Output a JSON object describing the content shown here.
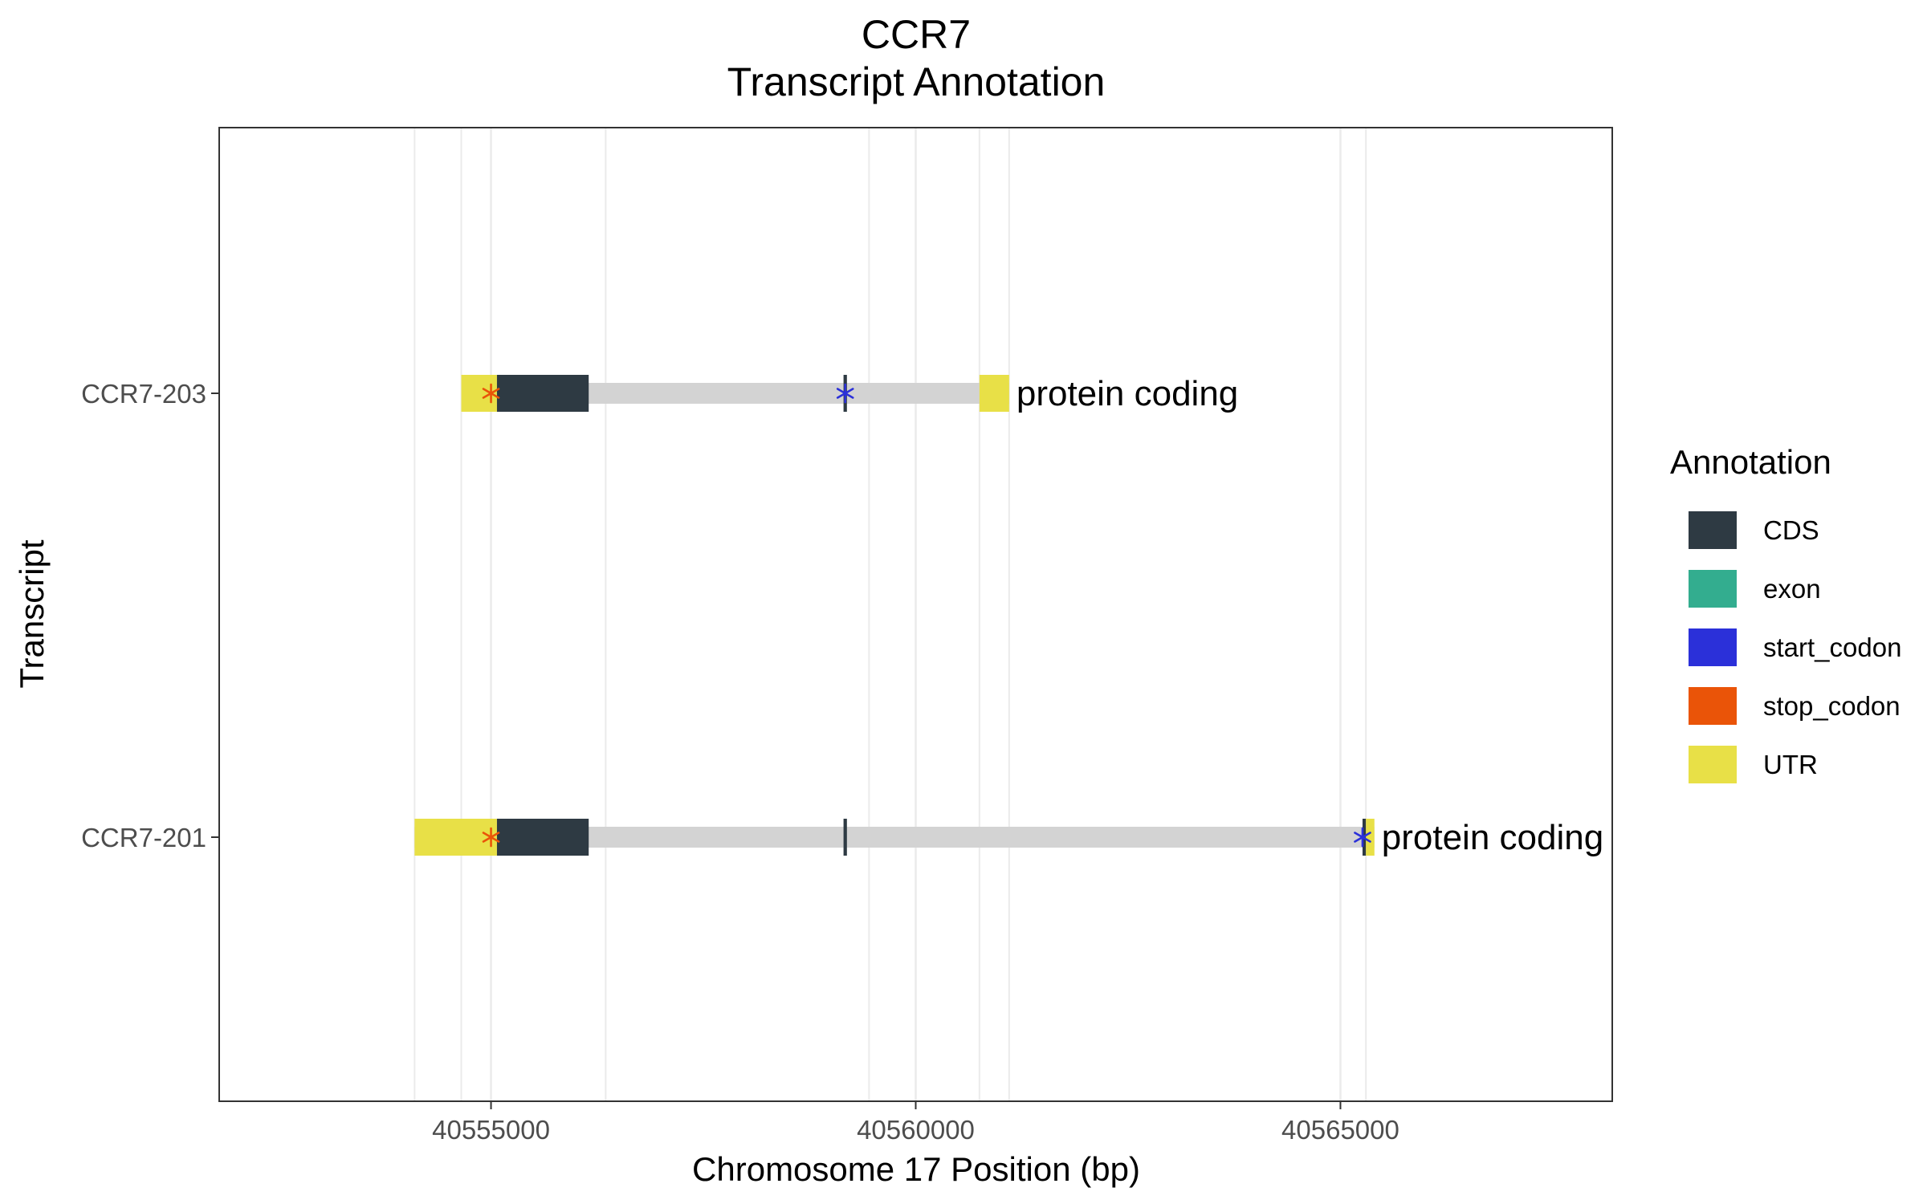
{
  "chart_data": {
    "type": "gene-transcript-track",
    "title": "CCR7",
    "subtitle": "Transcript Annotation",
    "xlabel": "Chromosome 17 Position (bp)",
    "ylabel": "Transcript",
    "xlim": [
      40551800,
      40568200
    ],
    "x_ticks": [
      40555000,
      40560000,
      40565000
    ],
    "x_tick_labels": [
      "40555000",
      "40560000",
      "40565000"
    ],
    "minor_gridlines_x": [
      40554100,
      40554650,
      40556350,
      40559450,
      40560750,
      40561100,
      40565300
    ],
    "grid": true,
    "legend": {
      "title": "Annotation",
      "position": "right",
      "items": [
        {
          "label": "CDS",
          "color": "#2e3a43"
        },
        {
          "label": "exon",
          "color": "#33ad8f"
        },
        {
          "label": "start_codon",
          "color": "#2b30d9"
        },
        {
          "label": "stop_codon",
          "color": "#ea5408"
        },
        {
          "label": "UTR",
          "color": "#e8e047"
        }
      ]
    },
    "intron_color": "#d3d3d3",
    "transcripts": [
      {
        "name": "CCR7-203",
        "biotype": "protein coding",
        "start": 40554650,
        "end": 40561100,
        "features": [
          {
            "type": "UTR",
            "start": 40554650,
            "end": 40555070
          },
          {
            "type": "CDS",
            "start": 40555070,
            "end": 40556150
          },
          {
            "type": "CDS",
            "start": 40559150,
            "end": 40559190
          },
          {
            "type": "UTR",
            "start": 40560750,
            "end": 40561100
          }
        ],
        "codons": [
          {
            "type": "stop_codon",
            "position": 40555000
          },
          {
            "type": "start_codon",
            "position": 40559170
          }
        ]
      },
      {
        "name": "CCR7-201",
        "biotype": "protein coding",
        "start": 40554100,
        "end": 40565400,
        "features": [
          {
            "type": "UTR",
            "start": 40554100,
            "end": 40555070
          },
          {
            "type": "CDS",
            "start": 40555070,
            "end": 40556150
          },
          {
            "type": "CDS",
            "start": 40559150,
            "end": 40559190
          },
          {
            "type": "CDS",
            "start": 40565260,
            "end": 40565300
          },
          {
            "type": "UTR",
            "start": 40565300,
            "end": 40565400
          }
        ],
        "codons": [
          {
            "type": "stop_codon",
            "position": 40555000
          },
          {
            "type": "start_codon",
            "position": 40565260
          }
        ]
      }
    ]
  }
}
